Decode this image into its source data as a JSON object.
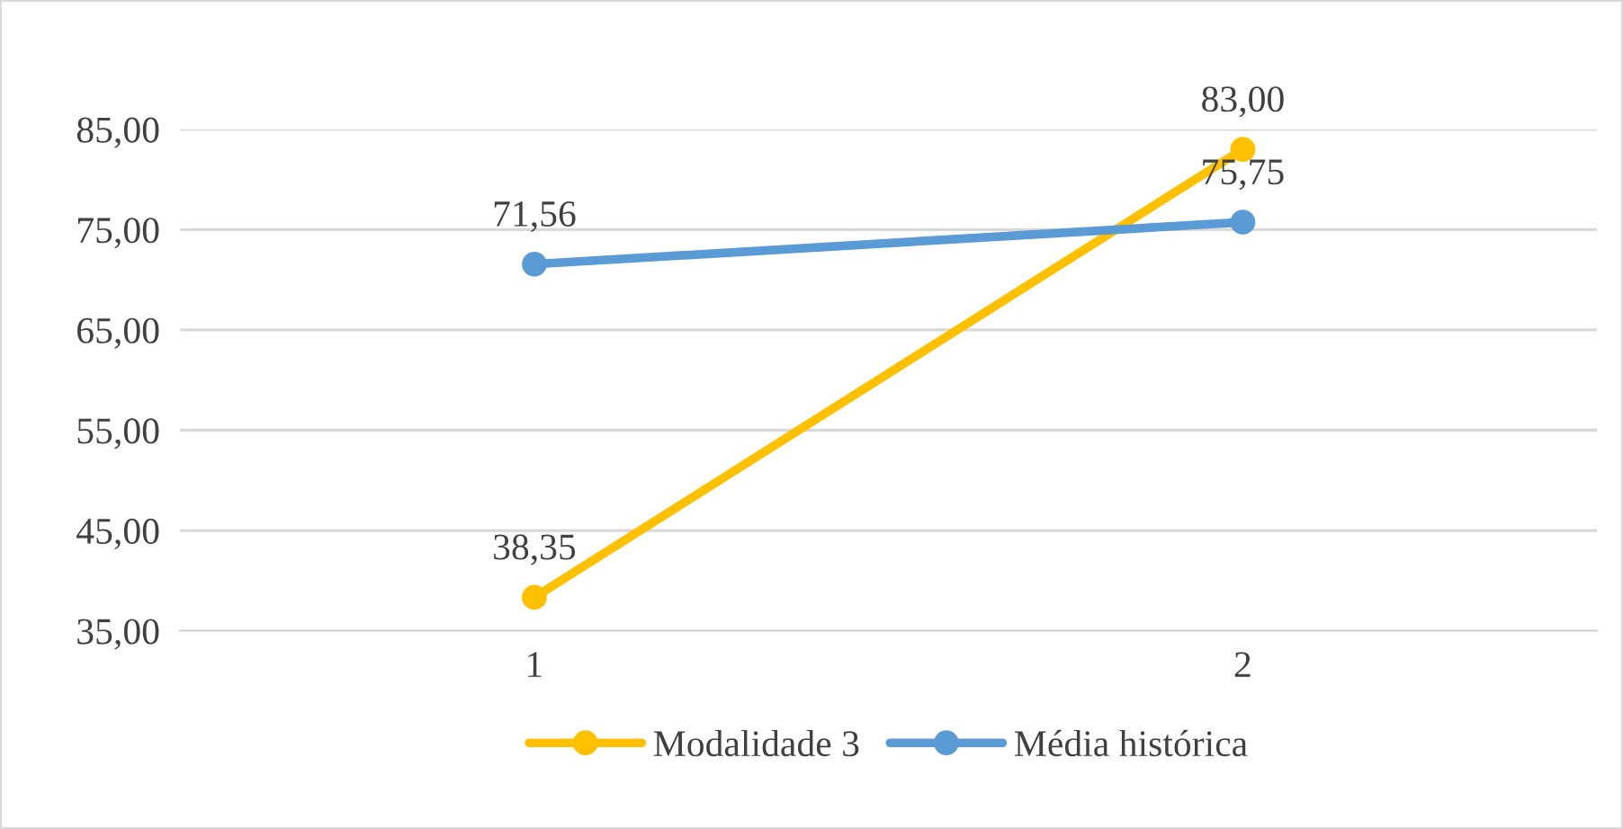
{
  "chart_data": {
    "type": "line",
    "categories": [
      "1",
      "2"
    ],
    "series": [
      {
        "name": "Modalidade 3",
        "color": "#ffc000",
        "values": [
          38.35,
          83.0
        ],
        "value_labels": [
          "38,35",
          "83,00"
        ]
      },
      {
        "name": "Média histórica",
        "color": "#5b9bd5",
        "values": [
          71.56,
          75.75
        ],
        "value_labels": [
          "71,56",
          "75,75"
        ]
      }
    ],
    "ylim": [
      35,
      85
    ],
    "yticks": [
      {
        "value": 35,
        "label": "35,00"
      },
      {
        "value": 45,
        "label": "45,00"
      },
      {
        "value": 55,
        "label": "55,00"
      },
      {
        "value": 65,
        "label": "65,00"
      },
      {
        "value": 75,
        "label": "75,00"
      },
      {
        "value": 85,
        "label": "85,00"
      }
    ],
    "grid": "y",
    "legend": "bottom",
    "marker": "circle",
    "line_style": "solid"
  }
}
